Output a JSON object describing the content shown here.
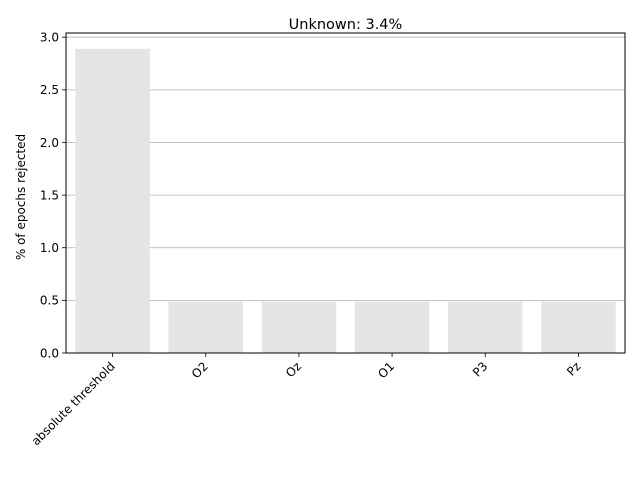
{
  "chart_data": {
    "type": "bar",
    "title": "Unknown: 3.4%",
    "xlabel": "",
    "ylabel": "% of epochs rejected",
    "categories": [
      "absolute threshold",
      "O2",
      "Oz",
      "O1",
      "P3",
      "Pz"
    ],
    "values": [
      2.89,
      0.49,
      0.49,
      0.49,
      0.49,
      0.49
    ],
    "ylim": [
      0,
      3.04
    ],
    "yticks": [
      "0.0",
      "0.5",
      "1.0",
      "1.5",
      "2.0",
      "2.5",
      "3.0"
    ],
    "grid": "y",
    "bar_color": "#e5e5e5",
    "grid_color": "#b0b0b0",
    "axis_color": "#000000"
  }
}
